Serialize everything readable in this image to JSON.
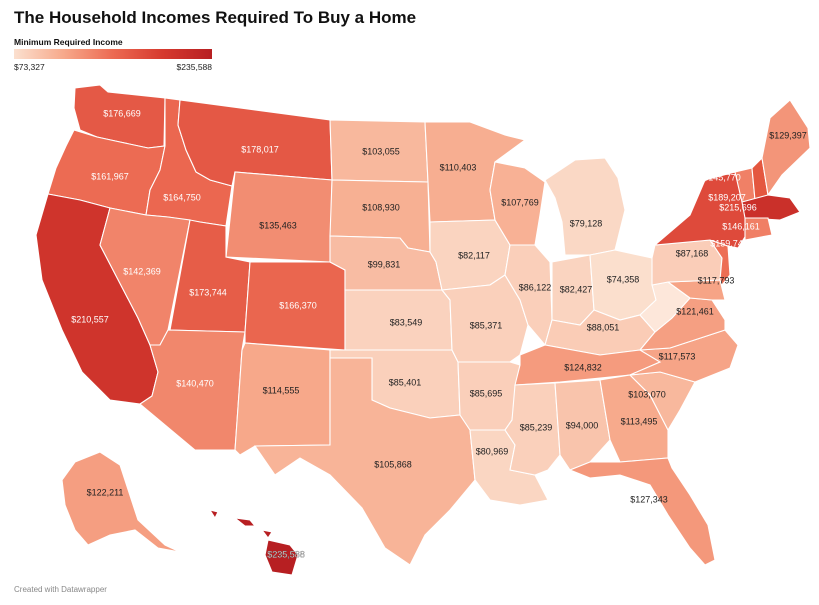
{
  "title": "The Household Incomes Required To Buy a Home",
  "legend": {
    "title": "Minimum Required Income",
    "min": "$73,327",
    "max": "$235,588",
    "min_value": 73327,
    "max_value": 235588
  },
  "credit": "Created with Datawrapper",
  "states": [
    {
      "id": "WA",
      "value": 176669,
      "label": "$176,669"
    },
    {
      "id": "OR",
      "value": 161967,
      "label": "$161,967"
    },
    {
      "id": "CA",
      "value": 210557,
      "label": "$210,557"
    },
    {
      "id": "ID",
      "value": 164750,
      "label": "$164,750"
    },
    {
      "id": "NV",
      "value": 142369,
      "label": "$142,369"
    },
    {
      "id": "MT",
      "value": 178017,
      "label": "$178,017"
    },
    {
      "id": "WY",
      "value": 135463,
      "label": "$135,463"
    },
    {
      "id": "UT",
      "value": 173744,
      "label": "$173,744"
    },
    {
      "id": "CO",
      "value": 166370,
      "label": "$166,370"
    },
    {
      "id": "AZ",
      "value": 140470,
      "label": "$140,470"
    },
    {
      "id": "NM",
      "value": 114555,
      "label": "$114,555"
    },
    {
      "id": "ND",
      "value": 103055,
      "label": "$103,055"
    },
    {
      "id": "SD",
      "value": 108930,
      "label": "$108,930"
    },
    {
      "id": "NE",
      "value": 99831,
      "label": "$99,831"
    },
    {
      "id": "KS",
      "value": 83549,
      "label": "$83,549"
    },
    {
      "id": "OK",
      "value": 85401,
      "label": "$85,401"
    },
    {
      "id": "TX",
      "value": 105868,
      "label": "$105,868"
    },
    {
      "id": "MN",
      "value": 110403,
      "label": "$110,403"
    },
    {
      "id": "IA",
      "value": 82117,
      "label": "$82,117"
    },
    {
      "id": "MO",
      "value": 85371,
      "label": "$85,371"
    },
    {
      "id": "AR",
      "value": 85695,
      "label": "$85,695"
    },
    {
      "id": "LA",
      "value": 80969,
      "label": "$80,969"
    },
    {
      "id": "WI",
      "value": 107769,
      "label": "$107,769"
    },
    {
      "id": "IL",
      "value": 86122,
      "label": "$86,122"
    },
    {
      "id": "MI",
      "value": 79128,
      "label": "$79,128"
    },
    {
      "id": "IN",
      "value": 82427,
      "label": "$82,427"
    },
    {
      "id": "OH",
      "value": 74358,
      "label": "$74,358"
    },
    {
      "id": "KY",
      "value": 88051,
      "label": "$88,051"
    },
    {
      "id": "TN",
      "value": 124832,
      "label": "$124,832"
    },
    {
      "id": "MS",
      "value": 85239,
      "label": "$85,239"
    },
    {
      "id": "AL",
      "value": 94000,
      "label": "$94,000"
    },
    {
      "id": "GA",
      "value": 113495,
      "label": "$113,495"
    },
    {
      "id": "FL",
      "value": 127343,
      "label": "$127,343"
    },
    {
      "id": "SC",
      "value": 103070,
      "label": "$103,070"
    },
    {
      "id": "NC",
      "value": 117573,
      "label": "$117,573"
    },
    {
      "id": "VA",
      "value": 121461,
      "label": "$121,461"
    },
    {
      "id": "WV",
      "value": null,
      "label": ""
    },
    {
      "id": "MD",
      "value": 117793,
      "label": "$117,793"
    },
    {
      "id": "PA",
      "value": 87168,
      "label": "$87,168"
    },
    {
      "id": "NJ",
      "value": 159744,
      "label": "$159,744"
    },
    {
      "id": "NY",
      "value": 189207,
      "label": "$189,207"
    },
    {
      "id": "VT",
      "value": 145770,
      "label": "$145,770"
    },
    {
      "id": "NH",
      "value": null,
      "label": ""
    },
    {
      "id": "ME",
      "value": 129397,
      "label": "$129,397"
    },
    {
      "id": "MA",
      "value": 215696,
      "label": "$215,696"
    },
    {
      "id": "CT",
      "value": 146161,
      "label": "$146,161"
    },
    {
      "id": "AK",
      "value": 122211,
      "label": "$122,211"
    },
    {
      "id": "HI",
      "value": 235588,
      "label": "$235,588"
    }
  ]
}
